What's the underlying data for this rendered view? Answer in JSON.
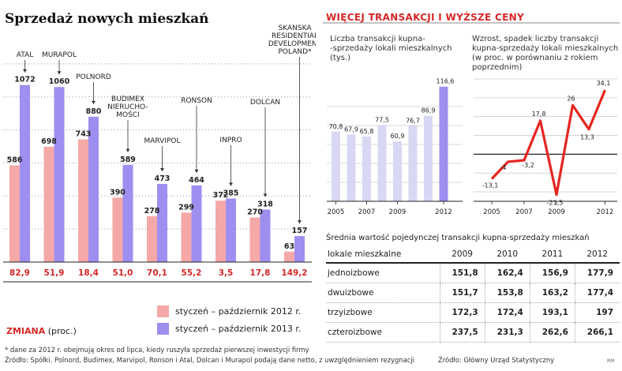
{
  "left_title": "Sprzedaż nowych mieszkań",
  "right_title": "WIĘCEJ TRANSAKCJI I WYŻSZE CENY",
  "zmiana_label": "ZMIANA",
  "zmiana_unit": "(proc.)",
  "legend": {
    "s2012": "styczeń – październik 2012 r.",
    "s2013": "styczeń – październik 2013 r."
  },
  "colors": {
    "s2012": "#f4a8a8",
    "s2013": "#9e8ef0",
    "accent_red": "#d62828",
    "mid_bars": "#d8d8f4",
    "last_bar": "#9e8ef0",
    "line_red": "#e52620"
  },
  "footnote": [
    "* dane za 2012 r. obejmują okres od lipca, kiedy ruszyła sprzedaż pierwszej inwestycji firmy",
    "Źródło: Spółki. Polnord, Budimex, Marvipol, Ronson i Atal, Dolcan i Murapol podają dane netto, z uwzględnieniem rezygnacji"
  ],
  "source_right": "Źródło: Główny Urząd Statystyczny",
  "credit": "RM",
  "chart_data": [
    {
      "type": "bar",
      "categories": [
        "ATAL",
        "MURAPOL",
        "POLNORD",
        "BUDIMEX NIERUCHO- MOŚCI",
        "MARVIPOL",
        "RONSON",
        "INPRO",
        "DOLCAN",
        "SKANSKA RESIDENTIAL DEVELOPMENT POLAND*"
      ],
      "series": [
        {
          "name": "styczeń – październik 2012 r.",
          "values": [
            586,
            698,
            743,
            390,
            278,
            299,
            372,
            270,
            63
          ]
        },
        {
          "name": "styczeń – październik 2013 r.",
          "values": [
            1072,
            1060,
            880,
            589,
            473,
            464,
            385,
            318,
            157
          ]
        }
      ],
      "change": [
        "82,9",
        "51,9",
        "18,4",
        "51,0",
        "70,1",
        "55,2",
        "3,5",
        "17,8",
        "149,2"
      ],
      "labels_2012": [
        "586",
        "698",
        "743",
        "390",
        "278",
        "299",
        "372",
        "270",
        "63"
      ],
      "labels_2013": [
        "1072",
        "1060",
        "880",
        "589",
        "473",
        "464",
        "385",
        "318",
        "157"
      ],
      "ylim": [
        0,
        1300
      ]
    },
    {
      "type": "bar",
      "title": "Liczba transakcji kupna--sprzedaży lokali mieszkalnych (tys.)",
      "title_lines": [
        "Liczba transakcji kupna-",
        "-sprzedaży lokali mieszkalnych",
        "(tys.)"
      ],
      "x": [
        2005,
        2006,
        2007,
        2008,
        2009,
        2010,
        2011,
        2012
      ],
      "values": [
        70.8,
        67.9,
        65.8,
        77.5,
        60.9,
        76.7,
        86.9,
        116.6
      ],
      "value_labels": [
        "70,8",
        "67,9",
        "65,8",
        "77,5",
        "60,9",
        "76,7",
        "86,9",
        "116,6"
      ],
      "x_ticks": [
        "2005",
        "2007",
        "2009",
        "2012"
      ],
      "ylim": [
        0,
        130
      ]
    },
    {
      "type": "line",
      "title": "Wzrost, spadek liczby transakcji kupna-sprzedaży lokali mieszkalnych (w proc. w porównaniu z rokiem poprzednim)",
      "title_lines": [
        "Wzrost, spadek liczby transakcji",
        "kupna-sprzedaży lokali mieszkalnych",
        "(w proc. w porównaniu z rokiem",
        "poprzednim)"
      ],
      "x": [
        2005,
        2006,
        2007,
        2008,
        2009,
        2010,
        2011,
        2012
      ],
      "values": [
        -13.1,
        -4,
        -3.2,
        17.8,
        -21.5,
        26,
        13.3,
        34.1
      ],
      "value_labels": [
        "-13,1",
        "-4",
        "-3,2",
        "17,8",
        "-21,5",
        "26",
        "13,3",
        "34,1"
      ],
      "x_ticks": [
        "2005",
        "2007",
        "2009",
        "2012"
      ],
      "ylim": [
        -25,
        40
      ]
    },
    {
      "type": "table",
      "title": "Średnia wartość pojedynczej transakcji kupna-sprzedaży mieszkań",
      "columns": [
        "lokale mieszkalne",
        "2009",
        "2010",
        "2011",
        "2012"
      ],
      "rows": [
        [
          "jednoizbowe",
          "151,8",
          "162,4",
          "156,9",
          "177,9"
        ],
        [
          "dwuizbowe",
          "151,7",
          "153,8",
          "163,2",
          "177,4"
        ],
        [
          "trzyizbowe",
          "172,3",
          "172,4",
          "193,1",
          "197"
        ],
        [
          "czteroizbowe",
          "237,5",
          "231,3",
          "262,6",
          "266,1"
        ]
      ]
    }
  ]
}
